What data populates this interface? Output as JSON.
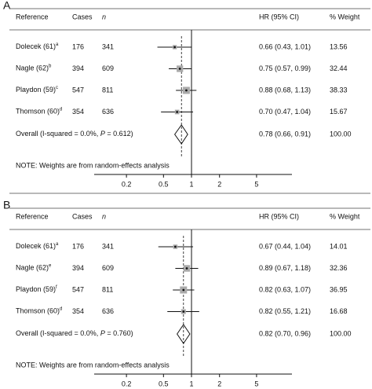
{
  "chart_data": [
    {
      "type": "forest",
      "panel": "A",
      "columns": [
        "Reference",
        "Cases",
        "n",
        "HR (95% CI)",
        "% Weight"
      ],
      "studies": [
        "Dolecek (61)",
        "Nagle (62)",
        "Playdon (59)",
        "Thomson (60)"
      ],
      "superscripts": [
        "a",
        "b",
        "c",
        "d"
      ],
      "cases": [
        176,
        394,
        547,
        354
      ],
      "n": [
        341,
        609,
        811,
        636
      ],
      "hr": [
        0.66,
        0.75,
        0.88,
        0.7
      ],
      "lower": [
        0.43,
        0.57,
        0.68,
        0.47
      ],
      "upper": [
        1.01,
        0.99,
        1.13,
        1.04
      ],
      "hr_labels": [
        "0.66 (0.43, 1.01)",
        "0.75 (0.57, 0.99)",
        "0.88 (0.68, 1.13)",
        "0.70 (0.47, 1.04)"
      ],
      "weights": [
        13.56,
        32.44,
        38.33,
        15.67
      ],
      "overall": {
        "label": "Overall  (I-squared = 0.0%, ",
        "p_symbol": "P",
        "p_text": " = 0.612)",
        "hr": 0.78,
        "lower": 0.66,
        "upper": 0.91,
        "hr_label": "0.78 (0.66, 0.91)",
        "weight": {
          "value": 100,
          "label": "100.00"
        }
      },
      "note": "NOTE: Weights are from random-effects analysis",
      "xlim": [
        0.09,
        12
      ],
      "xticks": [
        0.2,
        0.5,
        1,
        2,
        5
      ],
      "log_x": true,
      "null_line": 1
    },
    {
      "type": "forest",
      "panel": "B",
      "columns": [
        "Reference",
        "Cases",
        "n",
        "HR (95% CI)",
        "% Weight"
      ],
      "studies": [
        "Dolecek (61)",
        "Nagle (62)",
        "Playdon (59)",
        "Thomson (60)"
      ],
      "superscripts": [
        "a",
        "e",
        "f",
        "d"
      ],
      "cases": [
        176,
        394,
        547,
        354
      ],
      "n": [
        341,
        609,
        811,
        636
      ],
      "hr": [
        0.67,
        0.89,
        0.82,
        0.82
      ],
      "lower": [
        0.44,
        0.67,
        0.63,
        0.55
      ],
      "upper": [
        1.04,
        1.18,
        1.07,
        1.21
      ],
      "hr_labels": [
        "0.67 (0.44, 1.04)",
        "0.89 (0.67, 1.18)",
        "0.82 (0.63, 1.07)",
        "0.82 (0.55, 1.21)"
      ],
      "weights": [
        14.01,
        32.36,
        36.95,
        16.68
      ],
      "overall": {
        "label": "Overall  (I-squared = 0.0%, ",
        "p_symbol": "P",
        "p_text": " = 0.760)",
        "hr": 0.82,
        "lower": 0.7,
        "upper": 0.96,
        "hr_label": "0.82 (0.70, 0.96)",
        "weight": {
          "value": 100,
          "label": "100.00"
        }
      },
      "note": "NOTE: Weights are from random-effects analysis",
      "xlim": [
        0.09,
        12
      ],
      "xticks": [
        0.2,
        0.5,
        1,
        2,
        5
      ],
      "log_x": true,
      "null_line": 1
    }
  ]
}
